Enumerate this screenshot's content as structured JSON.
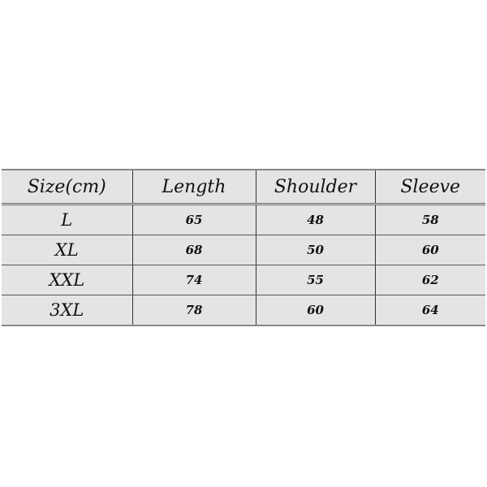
{
  "table": {
    "headers": [
      "Size(cm)",
      "Length",
      "Shoulder",
      "Sleeve"
    ],
    "rows": [
      [
        "L",
        "65",
        "48",
        "58"
      ],
      [
        "XL",
        "68",
        "50",
        "60"
      ],
      [
        "XXL",
        "74",
        "55",
        "62"
      ],
      [
        "3XL",
        "78",
        "60",
        "64"
      ]
    ]
  }
}
